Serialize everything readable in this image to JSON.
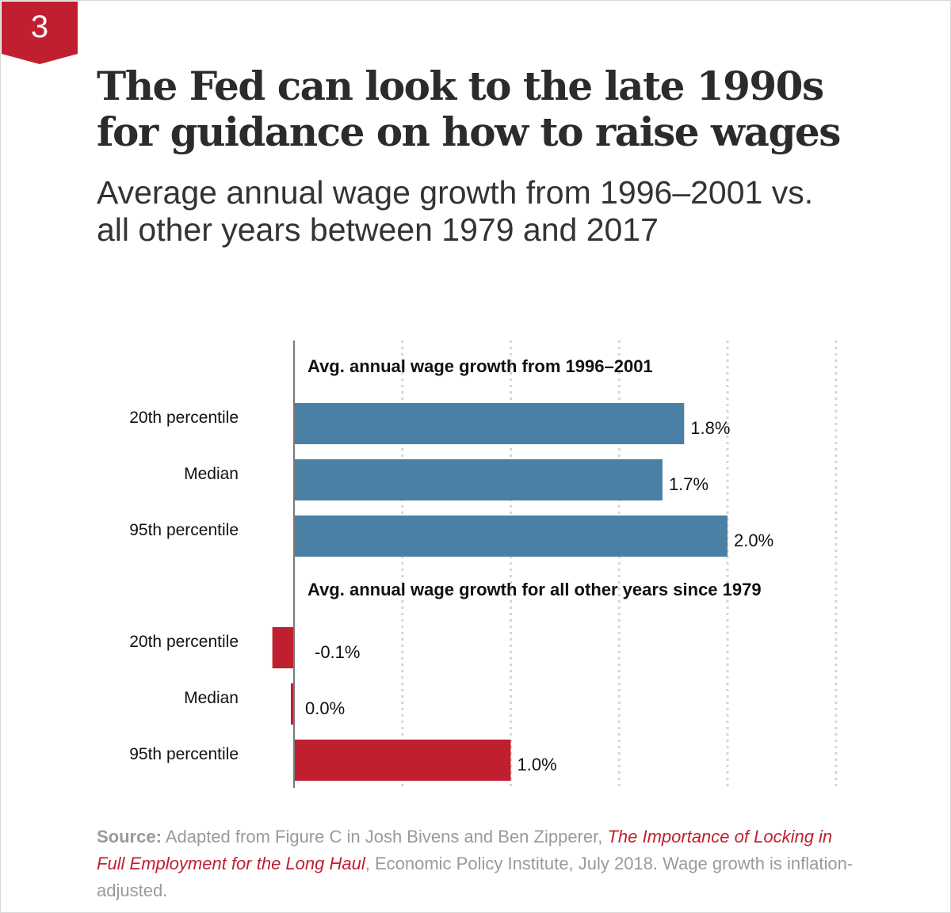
{
  "badge": {
    "number": "3"
  },
  "title": "The Fed can look to the late 1990s for guidance on how to raise wages",
  "subtitle": "Average annual wage growth from 1996–2001 vs. all other years between 1979 and 2017",
  "chart_data": {
    "type": "bar",
    "orientation": "horizontal",
    "grid": true,
    "xlim": [
      -0.2,
      2.5
    ],
    "groups": [
      {
        "name": "Avg. annual wage growth from 1996–2001",
        "color": "#4a80a3",
        "categories": [
          "20th percentile",
          "Median",
          "95th percentile"
        ],
        "values": [
          1.8,
          1.7,
          2.0
        ],
        "labels": [
          "1.8%",
          "1.7%",
          "2.0%"
        ]
      },
      {
        "name": "Avg. annual wage growth for all other years since 1979",
        "color": "#c01f2f",
        "categories": [
          "20th percentile",
          "Median",
          "95th percentile"
        ],
        "values": [
          -0.1,
          0.0,
          1.0
        ],
        "labels": [
          "-0.1%",
          "0.0%",
          "1.0%"
        ]
      }
    ]
  },
  "source": {
    "label": "Source:",
    "text_before": " Adapted from Figure C in Josh Bivens and Ben Zipperer, ",
    "reference": "The Importance of Locking in Full Employment for the Long Haul",
    "text_after": ", Economic Policy Institute, July 2018. Wage growth is inflation-adjusted."
  },
  "colors": {
    "accent": "#c01f2f",
    "blue": "#4a80a3",
    "source_text": "#9a9a9a"
  }
}
